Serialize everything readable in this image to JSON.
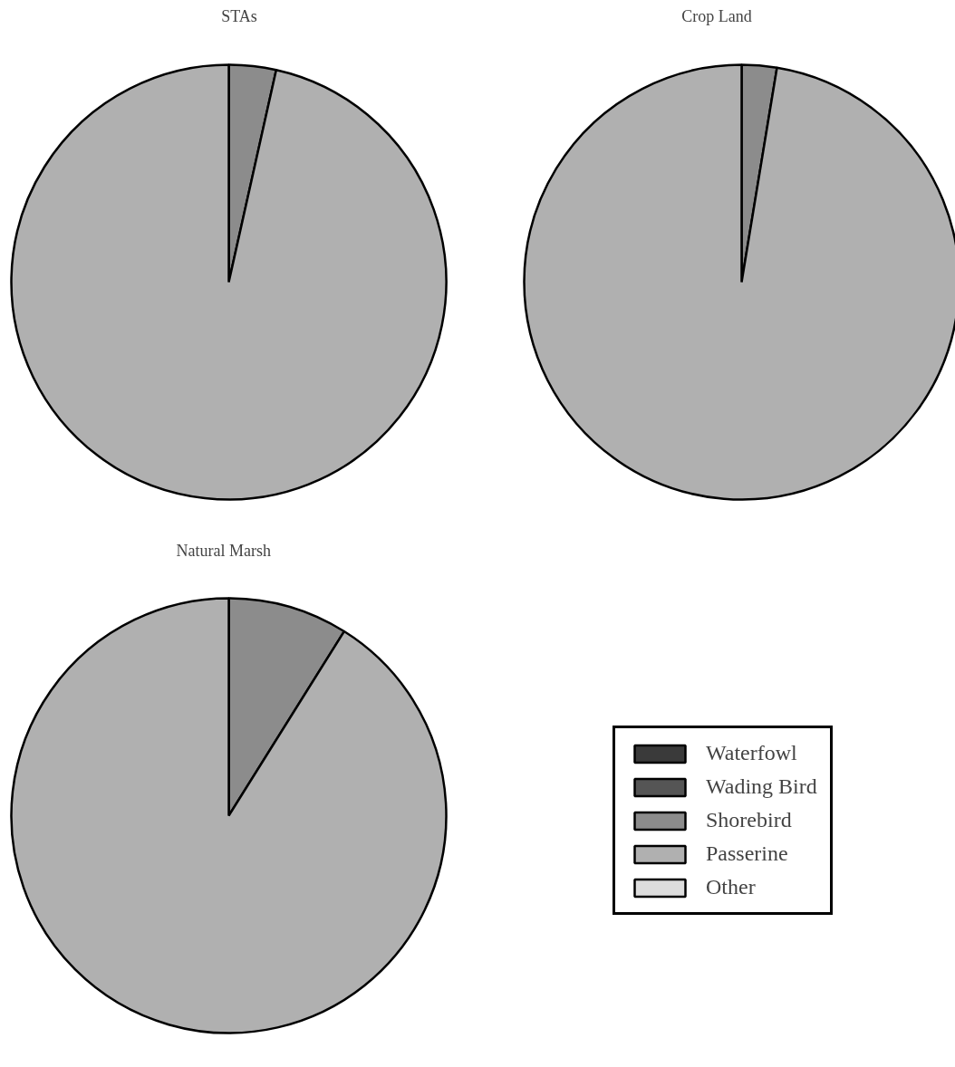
{
  "chart_data": [
    {
      "type": "pie",
      "title": "STAs",
      "categories": [
        null,
        null,
        null,
        null,
        null
      ],
      "values": [
        0,
        0,
        3.5,
        96.5,
        0
      ],
      "colors": [
        "#3a3a3a",
        "#555555",
        "#8c8c8c",
        "#b0b0b0",
        "#dddddd"
      ],
      "legend": false
    },
    {
      "type": "pie",
      "title": "Crop Land",
      "categories": [
        null,
        null,
        null,
        null,
        null
      ],
      "values": [
        0,
        0,
        2.6,
        97.4,
        0
      ],
      "colors": [
        "#3a3a3a",
        "#555555",
        "#8c8c8c",
        "#b0b0b0",
        "#dddddd"
      ],
      "legend": false
    },
    {
      "type": "pie",
      "title": "Natural Marsh",
      "categories": [
        "Waterfowl",
        "Wading Bird",
        "Shorebird",
        "Passerine",
        "Other"
      ],
      "values": [
        0,
        0,
        8.9,
        91.1,
        0
      ],
      "colors": [
        "#3a3a3a",
        "#555555",
        "#8c8c8c",
        "#b0b0b0",
        "#dddddd"
      ],
      "legend": "right"
    }
  ]
}
